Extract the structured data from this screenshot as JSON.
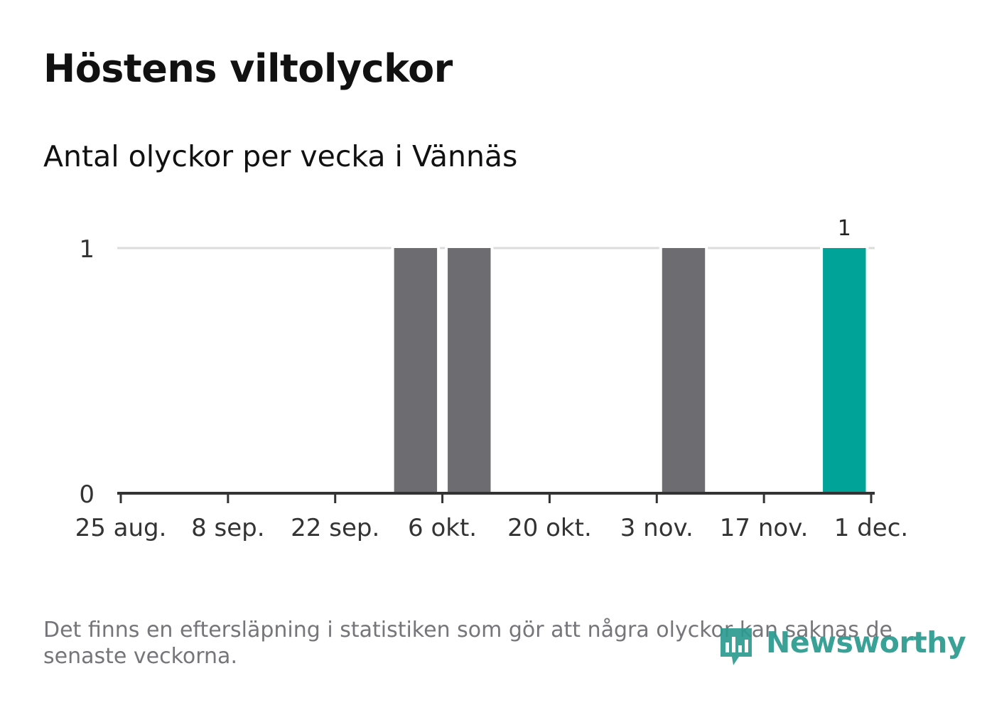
{
  "title": "Höstens viltolyckor",
  "subtitle": "Antal olyckor per vecka i Vännäs",
  "footnote": "Det finns en eftersläpning i statistiken som gör att några olyckor kan saknas de senaste veckorna.",
  "logo": {
    "text": "Newsworthy",
    "icon": "newsworthy-logo-icon",
    "color": "#2c9a8f"
  },
  "chart_data": {
    "type": "bar",
    "x_axis_type": "date",
    "ylim": [
      0,
      1
    ],
    "y_ticks": [
      0,
      1
    ],
    "grid": true,
    "xlim": [
      "2014-08-25",
      "2014-12-01"
    ],
    "x_ticks": [
      {
        "date": "2014-08-25",
        "label": "25 aug."
      },
      {
        "date": "2014-09-08",
        "label": "8 sep."
      },
      {
        "date": "2014-09-22",
        "label": "22 sep."
      },
      {
        "date": "2014-10-06",
        "label": "6 okt."
      },
      {
        "date": "2014-10-20",
        "label": "20 okt."
      },
      {
        "date": "2014-11-03",
        "label": "3 nov."
      },
      {
        "date": "2014-11-17",
        "label": "17 nov."
      },
      {
        "date": "2014-12-01",
        "label": "1 dec."
      }
    ],
    "series": [
      {
        "color_default": "#6d6c71",
        "color_highlight": "#00a398",
        "points": [
          {
            "week_start": "2014-09-29",
            "value": 1,
            "highlight": false
          },
          {
            "week_start": "2014-10-06",
            "value": 1,
            "highlight": false
          },
          {
            "week_start": "2014-11-03",
            "value": 1,
            "highlight": false
          },
          {
            "week_start": "2014-11-24",
            "value": 1,
            "highlight": true,
            "label": "1"
          }
        ]
      }
    ]
  }
}
